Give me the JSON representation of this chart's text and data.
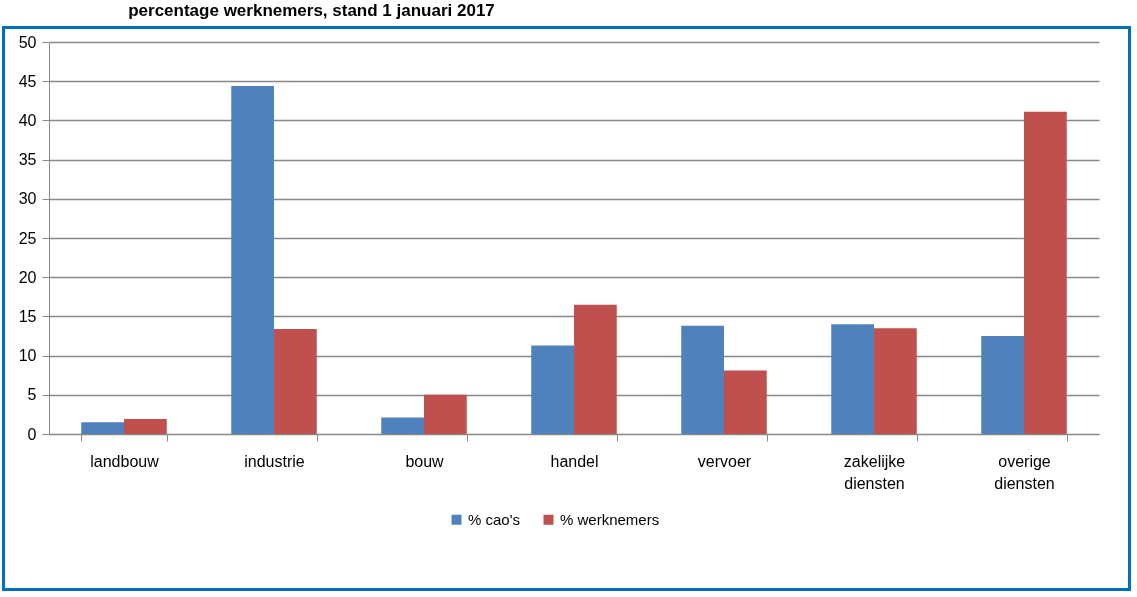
{
  "chart_data": {
    "type": "bar",
    "title": "percentage werknemers, stand 1 januari 2017",
    "categories": [
      "landbouw",
      "industrie",
      "bouw",
      "handel",
      "vervoer",
      "zakelijke diensten",
      "overige diensten"
    ],
    "series": [
      {
        "name": "% cao's",
        "color": "#4f81bd",
        "values": [
          1.5,
          44.4,
          2.1,
          11.3,
          13.8,
          14.0,
          12.5
        ]
      },
      {
        "name": "% werknemers",
        "color": "#c0504d",
        "values": [
          1.9,
          13.4,
          5.0,
          16.5,
          8.1,
          13.5,
          41.1
        ]
      }
    ],
    "ylim": [
      0,
      50
    ],
    "yticks": [
      0,
      5,
      10,
      15,
      20,
      25,
      30,
      35,
      40,
      45,
      50
    ],
    "grid": "y",
    "legend": "bottom"
  }
}
